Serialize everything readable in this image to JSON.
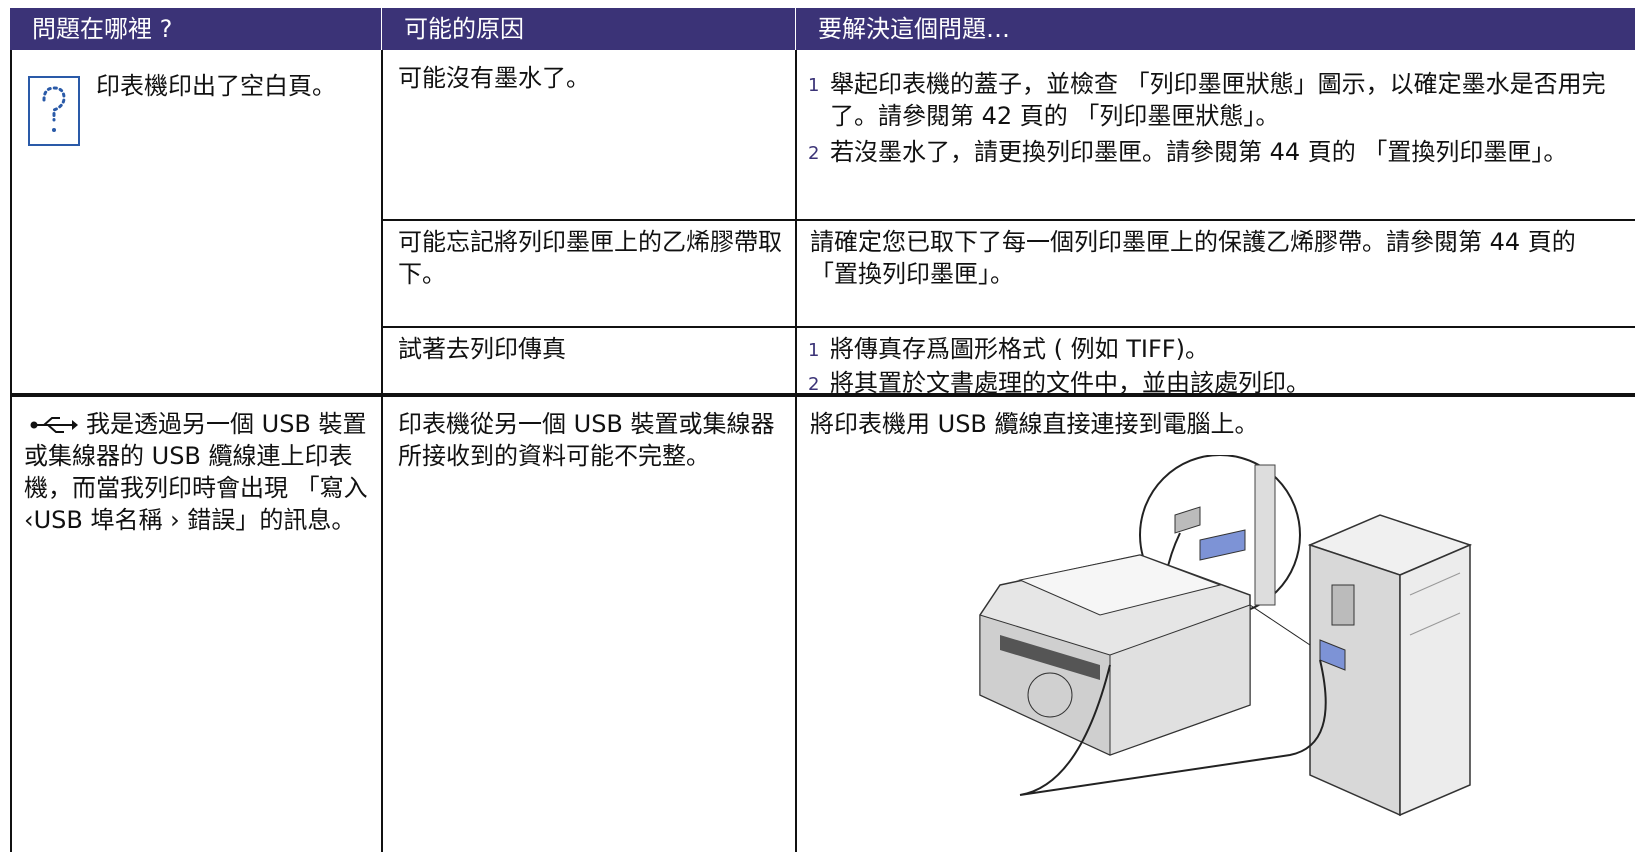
{
  "table": {
    "header": [
      "問題在哪裡 ?",
      "可能的原因",
      "要解決這個問題…"
    ],
    "groups": [
      {
        "problem": "印表機印出了空白頁。",
        "rows": [
          {
            "cause": "可能沒有墨水了。",
            "steps": [
              {
                "number": "1",
                "text": "舉起印表機的蓋子，並檢查 「列印墨匣狀態」圖示，以確定墨水是否用完了。請參閱第 42 頁的 「列印墨匣狀態」。"
              },
              {
                "number": "2",
                "text": "若沒墨水了，請更換列印墨匣。請參閱第 44 頁的 「置換列印墨匣」。"
              }
            ]
          },
          {
            "cause": "可能忘記將列印墨匣上的乙烯膠帶取下。",
            "solution": "請確定您已取下了每一個列印墨匣上的保護乙烯膠帶。請參閱第 44 頁的 「置換列印墨匣」。"
          },
          {
            "cause": "試著去列印傳真",
            "steps": [
              {
                "number": "1",
                "text": "將傳真存爲圖形格式 ( 例如 TIFF)。"
              },
              {
                "number": "2",
                "text": "將其置於文書處理的文件中，並由該處列印。"
              }
            ]
          }
        ]
      },
      {
        "problem": "我是透過另一個 USB 裝置或集線器的 USB 纜線連上印表機，而當我列印時會出現 「寫入 ‹USB 埠名稱 › 錯誤」的訊息。",
        "rows": [
          {
            "cause": "印表機從另一個 USB 裝置或集線器所接收到的資料可能不完整。",
            "solution": "將印表機用 USB 纜線直接連接到電腦上。"
          }
        ]
      }
    ]
  }
}
